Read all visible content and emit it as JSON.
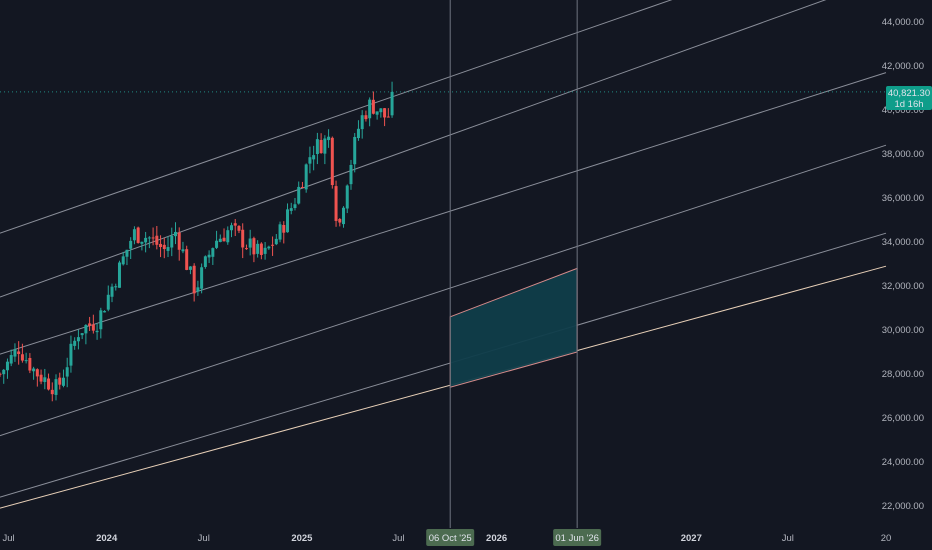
{
  "colors": {
    "background": "#131722",
    "grid_channel": "#8a8e99",
    "up": "#26a69a",
    "down": "#ef5350",
    "price_label": "#0f9d8a",
    "date_marker": "#4c6b50",
    "shade_fill": "#0f3d4a",
    "baseline": "#e8d0b8"
  },
  "price_label": {
    "value": "40,821.30",
    "countdown": "1d 16h"
  },
  "date_markers": [
    "06 Oct '25",
    "01 Jun '26"
  ],
  "chart_data": {
    "type": "candlestick",
    "title": "",
    "xlabel": "",
    "ylabel": "",
    "y_axis": {
      "range": [
        21000,
        45000
      ],
      "ticks": [
        "22,000.00",
        "24,000.00",
        "26,000.00",
        "28,000.00",
        "30,000.00",
        "32,000.00",
        "34,000.00",
        "36,000.00",
        "38,000.00",
        "40,000.00",
        "42,000.00",
        "44,000.00"
      ]
    },
    "x_axis": {
      "range": [
        "2023-06-15",
        "2028-01-01"
      ],
      "ticks": [
        {
          "label": "Jul",
          "date": "2023-07-01",
          "bold": false
        },
        {
          "label": "2024",
          "date": "2024-01-01",
          "bold": true
        },
        {
          "label": "Jul",
          "date": "2024-07-01",
          "bold": false
        },
        {
          "label": "2025",
          "date": "2025-01-01",
          "bold": true
        },
        {
          "label": "Jul",
          "date": "2025-07-01",
          "bold": false
        },
        {
          "label": "2026",
          "date": "2026-01-01",
          "bold": true
        },
        {
          "label": "2027",
          "date": "2027-01-01",
          "bold": true
        },
        {
          "label": "Jul",
          "date": "2027-07-01",
          "bold": false
        },
        {
          "label": "20",
          "date": "2028-01-01",
          "bold": false
        }
      ]
    },
    "last_price": 40821.3,
    "close_path": [
      {
        "date": "2023-06-15",
        "close": 28000
      },
      {
        "date": "2023-07-20",
        "close": 29200
      },
      {
        "date": "2023-08-20",
        "close": 28100
      },
      {
        "date": "2023-10-01",
        "close": 27300
      },
      {
        "date": "2023-11-10",
        "close": 30000
      },
      {
        "date": "2023-12-15",
        "close": 30400
      },
      {
        "date": "2024-01-20",
        "close": 32500
      },
      {
        "date": "2024-02-20",
        "close": 34400
      },
      {
        "date": "2024-03-20",
        "close": 34200
      },
      {
        "date": "2024-04-20",
        "close": 33600
      },
      {
        "date": "2024-05-10",
        "close": 34500
      },
      {
        "date": "2024-06-15",
        "close": 31800
      },
      {
        "date": "2024-07-20",
        "close": 34000
      },
      {
        "date": "2024-08-20",
        "close": 34600
      },
      {
        "date": "2024-09-20",
        "close": 33900
      },
      {
        "date": "2024-10-20",
        "close": 33300
      },
      {
        "date": "2024-11-20",
        "close": 34400
      },
      {
        "date": "2024-12-20",
        "close": 36000
      },
      {
        "date": "2025-01-20",
        "close": 38200
      },
      {
        "date": "2025-02-20",
        "close": 38700
      },
      {
        "date": "2025-03-10",
        "close": 34400
      },
      {
        "date": "2025-03-25",
        "close": 36700
      },
      {
        "date": "2025-04-20",
        "close": 39500
      },
      {
        "date": "2025-05-10",
        "close": 40300
      },
      {
        "date": "2025-06-10",
        "close": 39600
      },
      {
        "date": "2025-06-25",
        "close": 40821.3
      }
    ],
    "channel_lines": [
      {
        "name": "",
        "points": [
          {
            "date": "2023-06-15",
            "value": 34400
          },
          {
            "date": "2028-01-01",
            "value": 48400
          }
        ]
      },
      {
        "name": "",
        "points": [
          {
            "date": "2023-06-15",
            "value": 31500
          },
          {
            "date": "2028-01-01",
            "value": 46000
          }
        ]
      },
      {
        "name": "",
        "points": [
          {
            "date": "2023-06-15",
            "value": 28900
          },
          {
            "date": "2028-01-01",
            "value": 41700
          }
        ]
      },
      {
        "name": "",
        "points": [
          {
            "date": "2023-06-15",
            "value": 25200
          },
          {
            "date": "2028-01-01",
            "value": 38400
          }
        ]
      },
      {
        "name": "",
        "points": [
          {
            "date": "2023-06-15",
            "value": 22400
          },
          {
            "date": "2028-01-01",
            "value": 34400
          }
        ]
      },
      {
        "name": "",
        "points": [
          {
            "date": "2023-06-15",
            "value": 21900
          },
          {
            "date": "2028-01-01",
            "value": 32900
          }
        ]
      }
    ],
    "vertical_lines": [
      {
        "label": "06 Oct '25",
        "date": "2025-10-06"
      },
      {
        "label": "01 Jun '26",
        "date": "2026-06-01"
      }
    ],
    "shaded_region": {
      "x_from": "2025-10-06",
      "x_to": "2026-06-01",
      "top": [
        30600,
        32800
      ],
      "bottom": [
        27400,
        29000
      ]
    }
  }
}
